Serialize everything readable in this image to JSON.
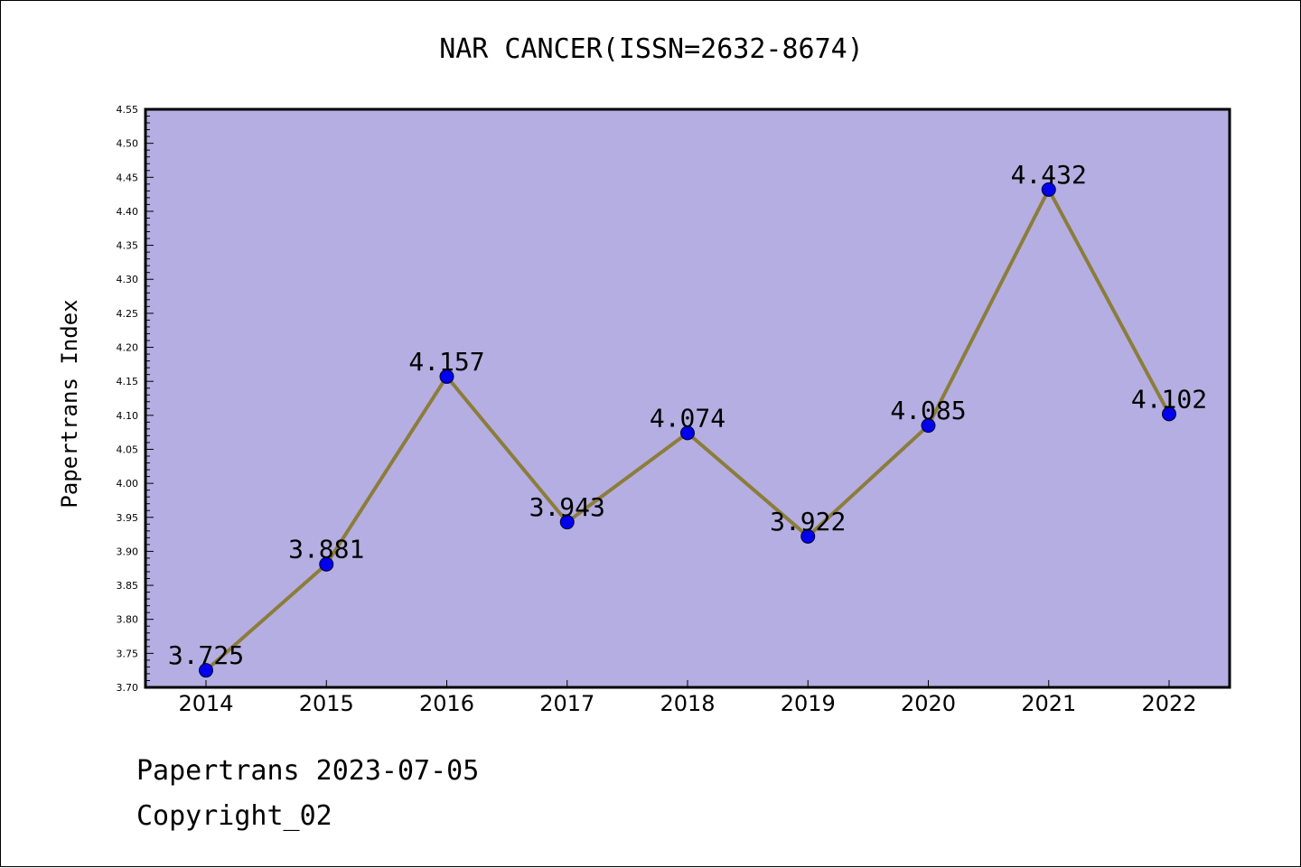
{
  "chart_data": {
    "type": "line",
    "title": "NAR CANCER(ISSN=2632-8674)",
    "xlabel": "",
    "ylabel": "Papertrans Index",
    "x": [
      "2014",
      "2015",
      "2016",
      "2017",
      "2018",
      "2019",
      "2020",
      "2021",
      "2022"
    ],
    "series": [
      {
        "values": [
          3.725,
          3.881,
          4.157,
          3.943,
          4.074,
          3.922,
          4.085,
          4.432,
          4.102
        ],
        "labels": [
          "3.725",
          "3.881",
          "4.157",
          "3.943",
          "4.074",
          "3.922",
          "4.085",
          "4.432",
          "4.102"
        ]
      }
    ],
    "ylim": [
      3.7,
      4.55
    ],
    "yticks": [
      "3.70",
      "3.75",
      "3.80",
      "3.85",
      "3.90",
      "3.95",
      "4.00",
      "4.05",
      "4.10",
      "4.15",
      "4.20",
      "4.25",
      "4.30",
      "4.35",
      "4.40",
      "4.45",
      "4.50",
      "4.55"
    ],
    "grid": false,
    "legend": "none",
    "colors": {
      "plot_background": "#b5aee2",
      "line": "#8b7d3a",
      "marker": "#0000ee",
      "axis": "#000000"
    }
  },
  "footer": {
    "line1": "Papertrans 2023-07-05",
    "line2": "Copyright_02"
  }
}
